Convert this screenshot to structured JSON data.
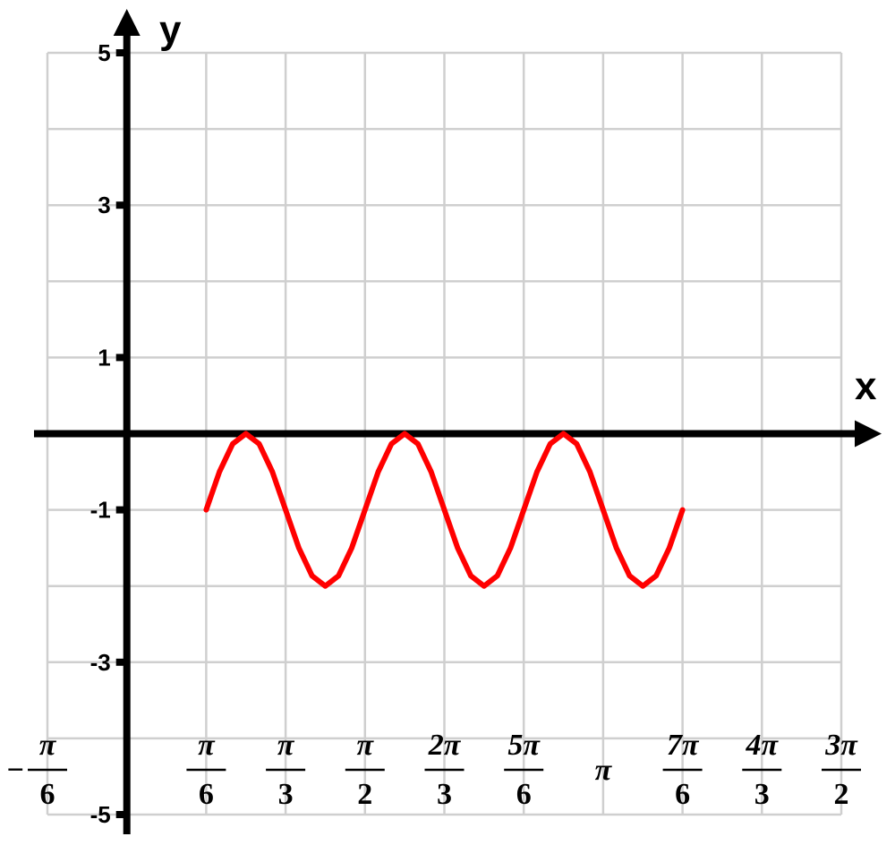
{
  "chart_data": {
    "type": "line",
    "xlabel": "x",
    "ylabel": "y",
    "xlim": [
      -0.5236,
      4.7124
    ],
    "ylim": [
      -5,
      5
    ],
    "grid": true,
    "y_ticks": [
      {
        "value": 5,
        "label": "5"
      },
      {
        "value": 3,
        "label": "3"
      },
      {
        "value": 1,
        "label": "1"
      },
      {
        "value": -1,
        "label": "-1"
      },
      {
        "value": -3,
        "label": "-3"
      },
      {
        "value": -5,
        "label": "-5"
      }
    ],
    "x_ticks": [
      {
        "value": -0.5236,
        "sign": "−",
        "num": "π",
        "den": "6"
      },
      {
        "value": 0.5236,
        "sign": "",
        "num": "π",
        "den": "6"
      },
      {
        "value": 1.0472,
        "sign": "",
        "num": "π",
        "den": "3"
      },
      {
        "value": 1.5708,
        "sign": "",
        "num": "π",
        "den": "2"
      },
      {
        "value": 2.0944,
        "sign": "",
        "num": "2π",
        "den": "3"
      },
      {
        "value": 2.618,
        "sign": "",
        "num": "5π",
        "den": "6"
      },
      {
        "value": 3.1416,
        "sign": "",
        "num": "π",
        "den": ""
      },
      {
        "value": 3.6652,
        "sign": "",
        "num": "7π",
        "den": "6"
      },
      {
        "value": 4.1888,
        "sign": "",
        "num": "4π",
        "den": "3"
      },
      {
        "value": 4.7124,
        "sign": "",
        "num": "3π",
        "den": "2"
      }
    ],
    "series": [
      {
        "color": "#ff0000",
        "x": [
          0.5236,
          0.6109,
          0.6981,
          0.7854,
          0.8727,
          0.9599,
          1.0472,
          1.1345,
          1.2217,
          1.309,
          1.3963,
          1.4835,
          1.5708,
          1.6581,
          1.7453,
          1.8326,
          1.9199,
          2.0071,
          2.0944,
          2.1817,
          2.2689,
          2.3562,
          2.4435,
          2.5307,
          2.618,
          2.7053,
          2.7925,
          2.8798,
          2.9671,
          3.0543,
          3.1416,
          3.2289,
          3.3161,
          3.4034,
          3.4907,
          3.5779,
          3.6652
        ],
        "y": [
          -1.0,
          -0.5,
          -0.134,
          0.0,
          -0.134,
          -0.5,
          -1.0,
          -1.5,
          -1.866,
          -2.0,
          -1.866,
          -1.5,
          -1.0,
          -0.5,
          -0.134,
          0.0,
          -0.134,
          -0.5,
          -1.0,
          -1.5,
          -1.866,
          -2.0,
          -1.866,
          -1.5,
          -1.0,
          -0.5,
          -0.134,
          0.0,
          -0.134,
          -0.5,
          -1.0,
          -1.5,
          -1.866,
          -2.0,
          -1.866,
          -1.5,
          -1.0
        ]
      }
    ]
  }
}
